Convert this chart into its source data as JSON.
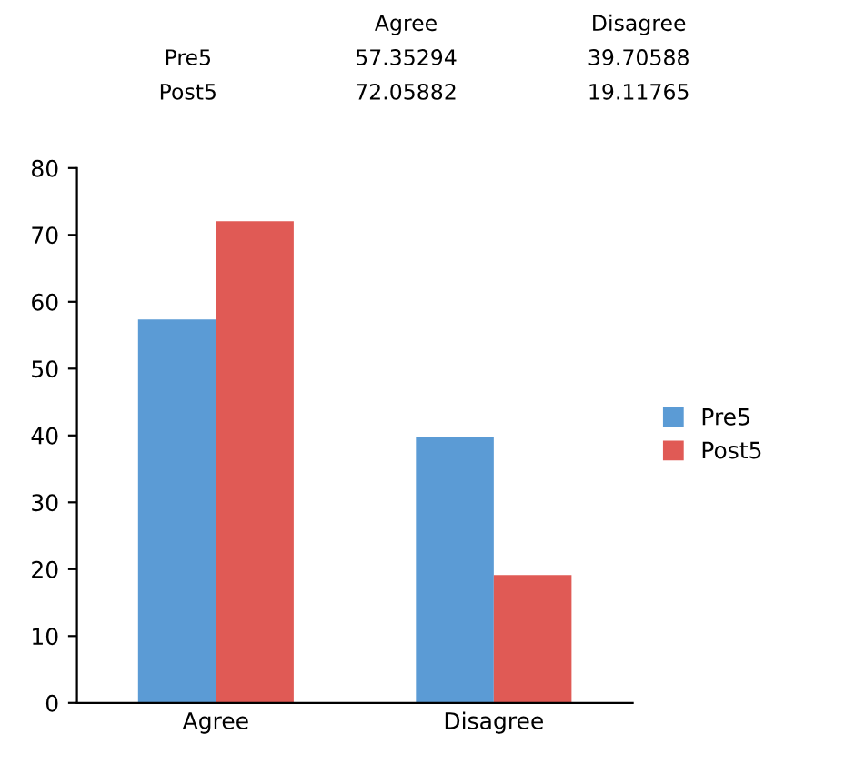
{
  "chart_data": [
    {
      "type": "other",
      "categories": [
        "Agree",
        "Disagree"
      ],
      "annotations": [
        "Pre5",
        "57.35294",
        "39.70588",
        "Post5",
        "72.05882",
        "19.11765"
      ]
    },
    {
      "type": "bar",
      "categories": [
        "Agree",
        "Disagree"
      ],
      "series": [
        {
          "name": "Pre5",
          "color": "#5b9bd5",
          "values": [
            57.35294,
            39.70588
          ]
        },
        {
          "name": "Post5",
          "color": "#e05a55",
          "values": [
            72.05882,
            19.11765
          ]
        }
      ],
      "ylim": [
        0,
        80
      ],
      "yticks": [
        0,
        10,
        20,
        30,
        40,
        50,
        60,
        70,
        80
      ],
      "grid": false,
      "legend": "right"
    }
  ]
}
